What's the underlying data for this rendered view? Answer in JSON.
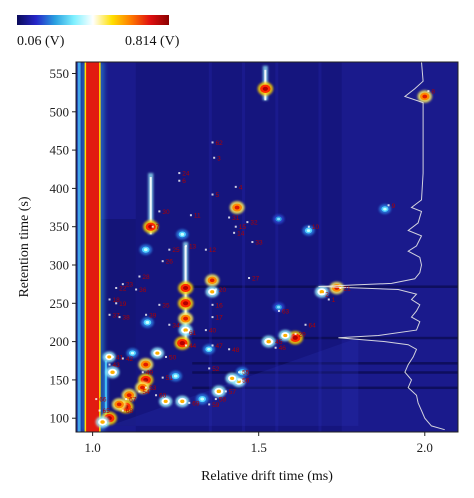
{
  "colorbar": {
    "min_label": "0.06 (V)",
    "max_label": "0.814 (V)",
    "stops": [
      "#0b0b5a",
      "#2626c8",
      "#2aa0e0",
      "#7ff0ff",
      "#ffffff",
      "#ffe000",
      "#ff7a00",
      "#e01010",
      "#8a0000"
    ]
  },
  "chart_data": {
    "type": "heatmap",
    "title": "",
    "xlabel": "Relative drift time (ms)",
    "ylabel": "Retention time (s)",
    "xlim": [
      0.95,
      2.1
    ],
    "ylim": [
      82,
      565
    ],
    "xticks": [
      1.0,
      1.5,
      2.0
    ],
    "xtick_labels": [
      "1.0",
      "1.5",
      "2.0"
    ],
    "yticks": [
      100,
      150,
      200,
      250,
      300,
      350,
      400,
      450,
      500,
      550
    ],
    "ytick_labels": [
      "100",
      "150",
      "200",
      "250",
      "300",
      "350",
      "400",
      "450",
      "500",
      "550"
    ],
    "intensity_range_V": [
      0.06,
      0.814
    ],
    "reactant_ion_peak_drift": 1.0,
    "spots": [
      {
        "x": 1.52,
        "y": 530,
        "i": 0.95
      },
      {
        "x": 2.0,
        "y": 520,
        "i": 0.8
      },
      {
        "x": 1.435,
        "y": 375,
        "i": 0.85
      },
      {
        "x": 1.175,
        "y": 350,
        "i": 0.9
      },
      {
        "x": 1.27,
        "y": 340,
        "i": 0.45
      },
      {
        "x": 1.65,
        "y": 345,
        "i": 0.45
      },
      {
        "x": 1.88,
        "y": 373,
        "i": 0.4
      },
      {
        "x": 1.56,
        "y": 360,
        "i": 0.3
      },
      {
        "x": 1.36,
        "y": 280,
        "i": 0.75
      },
      {
        "x": 1.36,
        "y": 265,
        "i": 0.6
      },
      {
        "x": 1.28,
        "y": 270,
        "i": 0.9
      },
      {
        "x": 1.28,
        "y": 250,
        "i": 0.95
      },
      {
        "x": 1.28,
        "y": 230,
        "i": 0.85
      },
      {
        "x": 1.28,
        "y": 215,
        "i": 0.7
      },
      {
        "x": 1.27,
        "y": 198,
        "i": 0.95
      },
      {
        "x": 1.735,
        "y": 270,
        "i": 0.8
      },
      {
        "x": 1.69,
        "y": 265,
        "i": 0.7
      },
      {
        "x": 1.56,
        "y": 245,
        "i": 0.35
      },
      {
        "x": 1.61,
        "y": 205,
        "i": 0.95
      },
      {
        "x": 1.58,
        "y": 208,
        "i": 0.6
      },
      {
        "x": 1.53,
        "y": 200,
        "i": 0.7
      },
      {
        "x": 1.16,
        "y": 320,
        "i": 0.5
      },
      {
        "x": 1.165,
        "y": 225,
        "i": 0.5
      },
      {
        "x": 1.195,
        "y": 185,
        "i": 0.6
      },
      {
        "x": 1.05,
        "y": 180,
        "i": 0.55
      },
      {
        "x": 1.06,
        "y": 160,
        "i": 0.7
      },
      {
        "x": 1.12,
        "y": 185,
        "i": 0.4
      },
      {
        "x": 1.16,
        "y": 170,
        "i": 0.85
      },
      {
        "x": 1.16,
        "y": 150,
        "i": 0.9
      },
      {
        "x": 1.15,
        "y": 140,
        "i": 0.8
      },
      {
        "x": 1.11,
        "y": 130,
        "i": 0.85
      },
      {
        "x": 1.1,
        "y": 115,
        "i": 0.9
      },
      {
        "x": 1.05,
        "y": 100,
        "i": 0.95
      },
      {
        "x": 1.03,
        "y": 95,
        "i": 0.7
      },
      {
        "x": 1.22,
        "y": 122,
        "i": 0.6
      },
      {
        "x": 1.27,
        "y": 122,
        "i": 0.65
      },
      {
        "x": 1.38,
        "y": 135,
        "i": 0.7
      },
      {
        "x": 1.44,
        "y": 148,
        "i": 0.6
      },
      {
        "x": 1.45,
        "y": 160,
        "i": 0.5
      },
      {
        "x": 1.35,
        "y": 190,
        "i": 0.4
      },
      {
        "x": 1.42,
        "y": 152,
        "i": 0.6
      },
      {
        "x": 1.25,
        "y": 155,
        "i": 0.5
      },
      {
        "x": 1.08,
        "y": 118,
        "i": 0.8
      },
      {
        "x": 1.33,
        "y": 125,
        "i": 0.5
      }
    ],
    "streaks": [
      {
        "x": 1.52,
        "y_from": 515,
        "y_to": 560,
        "i": 0.7
      },
      {
        "x": 1.175,
        "y_from": 340,
        "y_to": 420,
        "i": 0.55
      },
      {
        "x": 1.28,
        "y_from": 200,
        "y_to": 330,
        "i": 0.6
      },
      {
        "x": 1.04,
        "y_from": 90,
        "y_to": 180,
        "i": 0.45
      }
    ],
    "peak_labels": [
      {
        "text": "62",
        "x": 1.37,
        "y": 460
      },
      {
        "text": "3",
        "x": 1.375,
        "y": 440
      },
      {
        "text": "24",
        "x": 1.27,
        "y": 420
      },
      {
        "text": "6",
        "x": 1.27,
        "y": 410
      },
      {
        "text": "4",
        "x": 1.44,
        "y": 402
      },
      {
        "text": "5",
        "x": 1.37,
        "y": 392
      },
      {
        "text": "30",
        "x": 1.21,
        "y": 370
      },
      {
        "text": "11",
        "x": 1.305,
        "y": 365
      },
      {
        "text": "31",
        "x": 1.42,
        "y": 362
      },
      {
        "text": "32",
        "x": 1.475,
        "y": 356
      },
      {
        "text": "15",
        "x": 1.44,
        "y": 350
      },
      {
        "text": "14",
        "x": 1.435,
        "y": 342
      },
      {
        "text": "7",
        "x": 1.19,
        "y": 350
      },
      {
        "text": "10",
        "x": 1.66,
        "y": 350
      },
      {
        "text": "9",
        "x": 1.9,
        "y": 378
      },
      {
        "text": "8",
        "x": 2.02,
        "y": 527
      },
      {
        "text": "33",
        "x": 1.49,
        "y": 330
      },
      {
        "text": "12",
        "x": 1.35,
        "y": 320
      },
      {
        "text": "13",
        "x": 1.29,
        "y": 325
      },
      {
        "text": "25",
        "x": 1.24,
        "y": 320
      },
      {
        "text": "26",
        "x": 1.22,
        "y": 305
      },
      {
        "text": "27",
        "x": 1.48,
        "y": 283
      },
      {
        "text": "28",
        "x": 1.15,
        "y": 285
      },
      {
        "text": "23",
        "x": 1.1,
        "y": 275
      },
      {
        "text": "22",
        "x": 1.08,
        "y": 270
      },
      {
        "text": "36",
        "x": 1.14,
        "y": 268
      },
      {
        "text": "20",
        "x": 1.38,
        "y": 268
      },
      {
        "text": "21",
        "x": 1.755,
        "y": 270
      },
      {
        "text": "2",
        "x": 1.7,
        "y": 262
      },
      {
        "text": "18",
        "x": 1.06,
        "y": 255
      },
      {
        "text": "19",
        "x": 1.08,
        "y": 250
      },
      {
        "text": "35",
        "x": 1.21,
        "y": 248
      },
      {
        "text": "16",
        "x": 1.37,
        "y": 248
      },
      {
        "text": "1",
        "x": 1.72,
        "y": 255
      },
      {
        "text": "37",
        "x": 1.06,
        "y": 235
      },
      {
        "text": "38",
        "x": 1.09,
        "y": 232
      },
      {
        "text": "39",
        "x": 1.17,
        "y": 235
      },
      {
        "text": "17",
        "x": 1.37,
        "y": 232
      },
      {
        "text": "63",
        "x": 1.57,
        "y": 240
      },
      {
        "text": "34",
        "x": 1.24,
        "y": 222
      },
      {
        "text": "40",
        "x": 1.35,
        "y": 215
      },
      {
        "text": "61",
        "x": 1.29,
        "y": 212
      },
      {
        "text": "64",
        "x": 1.65,
        "y": 222
      },
      {
        "text": "29",
        "x": 1.62,
        "y": 210
      },
      {
        "text": "44",
        "x": 1.29,
        "y": 195
      },
      {
        "text": "45",
        "x": 1.55,
        "y": 200
      },
      {
        "text": "46",
        "x": 1.56,
        "y": 192
      },
      {
        "text": "47",
        "x": 1.37,
        "y": 195
      },
      {
        "text": "48",
        "x": 1.42,
        "y": 190
      },
      {
        "text": "41",
        "x": 1.07,
        "y": 180
      },
      {
        "text": "42",
        "x": 1.1,
        "y": 178
      },
      {
        "text": "43",
        "x": 1.06,
        "y": 170
      },
      {
        "text": "50",
        "x": 1.23,
        "y": 180
      },
      {
        "text": "49",
        "x": 1.16,
        "y": 160
      },
      {
        "text": "51",
        "x": 1.22,
        "y": 153
      },
      {
        "text": "52",
        "x": 1.36,
        "y": 165
      },
      {
        "text": "53",
        "x": 1.17,
        "y": 140
      },
      {
        "text": "54",
        "x": 1.15,
        "y": 135
      },
      {
        "text": "55",
        "x": 1.45,
        "y": 160
      },
      {
        "text": "56",
        "x": 1.45,
        "y": 150
      },
      {
        "text": "57",
        "x": 1.41,
        "y": 135
      },
      {
        "text": "58",
        "x": 1.38,
        "y": 125
      },
      {
        "text": "59",
        "x": 1.36,
        "y": 118
      },
      {
        "text": "60",
        "x": 1.2,
        "y": 130
      },
      {
        "text": "65",
        "x": 1.03,
        "y": 110
      },
      {
        "text": "66",
        "x": 1.02,
        "y": 125
      },
      {
        "text": "67",
        "x": 1.11,
        "y": 125
      },
      {
        "text": "68",
        "x": 1.1,
        "y": 110
      },
      {
        "text": "69",
        "x": 1.3,
        "y": 120
      }
    ],
    "projection_curve": {
      "baseline_x": 1.99,
      "points": [
        [
          565,
          1.99
        ],
        [
          540,
          1.995
        ],
        [
          530,
          1.97
        ],
        [
          520,
          1.94
        ],
        [
          512,
          1.995
        ],
        [
          470,
          1.995
        ],
        [
          420,
          1.995
        ],
        [
          385,
          1.99
        ],
        [
          375,
          1.96
        ],
        [
          370,
          1.99
        ],
        [
          355,
          1.98
        ],
        [
          345,
          1.95
        ],
        [
          338,
          1.99
        ],
        [
          325,
          1.975
        ],
        [
          318,
          1.95
        ],
        [
          310,
          1.985
        ],
        [
          300,
          1.99
        ],
        [
          290,
          1.985
        ],
        [
          282,
          1.97
        ],
        [
          276,
          1.9
        ],
        [
          272,
          1.68
        ],
        [
          268,
          1.92
        ],
        [
          262,
          1.975
        ],
        [
          255,
          1.96
        ],
        [
          248,
          1.985
        ],
        [
          240,
          1.975
        ],
        [
          232,
          1.96
        ],
        [
          226,
          1.985
        ],
        [
          215,
          1.975
        ],
        [
          208,
          1.86
        ],
        [
          205,
          1.74
        ],
        [
          200,
          1.88
        ],
        [
          196,
          1.95
        ],
        [
          190,
          1.975
        ],
        [
          180,
          1.965
        ],
        [
          170,
          1.95
        ],
        [
          160,
          1.94
        ],
        [
          150,
          1.96
        ],
        [
          140,
          1.95
        ],
        [
          130,
          1.975
        ],
        [
          120,
          1.98
        ],
        [
          110,
          1.99
        ],
        [
          100,
          2.0
        ],
        [
          90,
          2.02
        ],
        [
          85,
          2.06
        ]
      ]
    }
  }
}
